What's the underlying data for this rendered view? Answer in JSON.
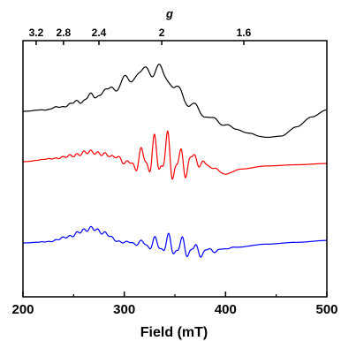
{
  "chart_data": {
    "type": "line",
    "xlabel": "Field (mT)",
    "xlim": [
      200,
      500
    ],
    "x_ticks": [
      200,
      300,
      400,
      500
    ],
    "x_tick_labels": [
      "200",
      "300",
      "400",
      "500"
    ],
    "top_axis": {
      "label": "g",
      "tick_labels": [
        "3.2",
        "2.8",
        "2.4",
        "2",
        "1.6"
      ],
      "tick_field_positions": [
        213,
        240,
        275,
        337,
        418
      ]
    },
    "series": [
      {
        "color": "#000000",
        "points": [
          [
            200,
            0.0
          ],
          [
            220,
            0.02
          ],
          [
            240,
            0.07
          ],
          [
            255,
            0.14
          ],
          [
            270,
            0.22
          ],
          [
            285,
            0.3
          ],
          [
            300,
            0.42
          ],
          [
            315,
            0.54
          ],
          [
            330,
            0.6
          ],
          [
            340,
            0.52
          ],
          [
            350,
            0.34
          ],
          [
            360,
            0.18
          ],
          [
            370,
            0.05
          ],
          [
            380,
            -0.06
          ],
          [
            395,
            -0.16
          ],
          [
            410,
            -0.25
          ],
          [
            425,
            -0.32
          ],
          [
            440,
            -0.37
          ],
          [
            455,
            -0.35
          ],
          [
            470,
            -0.22
          ],
          [
            485,
            -0.08
          ],
          [
            500,
            0.02
          ]
        ]
      },
      {
        "color": "#ff0000",
        "points": [
          [
            200,
            0.0
          ],
          [
            230,
            0.05
          ],
          [
            250,
            0.1
          ],
          [
            265,
            0.16
          ],
          [
            280,
            0.12
          ],
          [
            295,
            0.06
          ],
          [
            305,
            -0.05
          ],
          [
            320,
            0.05
          ],
          [
            340,
            0.1
          ],
          [
            355,
            -0.05
          ],
          [
            370,
            0.03
          ],
          [
            385,
            -0.08
          ],
          [
            400,
            -0.2
          ],
          [
            415,
            -0.12
          ],
          [
            440,
            -0.07
          ],
          [
            470,
            -0.05
          ],
          [
            500,
            -0.03
          ]
        ]
      },
      {
        "color": "#0000ff",
        "points": [
          [
            200,
            0.0
          ],
          [
            225,
            0.02
          ],
          [
            245,
            0.1
          ],
          [
            260,
            0.2
          ],
          [
            268,
            0.24
          ],
          [
            280,
            0.16
          ],
          [
            295,
            0.02
          ],
          [
            310,
            0.0
          ],
          [
            325,
            -0.02
          ],
          [
            340,
            -0.03
          ],
          [
            360,
            -0.08
          ],
          [
            375,
            -0.14
          ],
          [
            390,
            -0.12
          ],
          [
            410,
            -0.07
          ],
          [
            440,
            -0.02
          ],
          [
            470,
            0.01
          ],
          [
            500,
            0.04
          ]
        ]
      }
    ]
  }
}
